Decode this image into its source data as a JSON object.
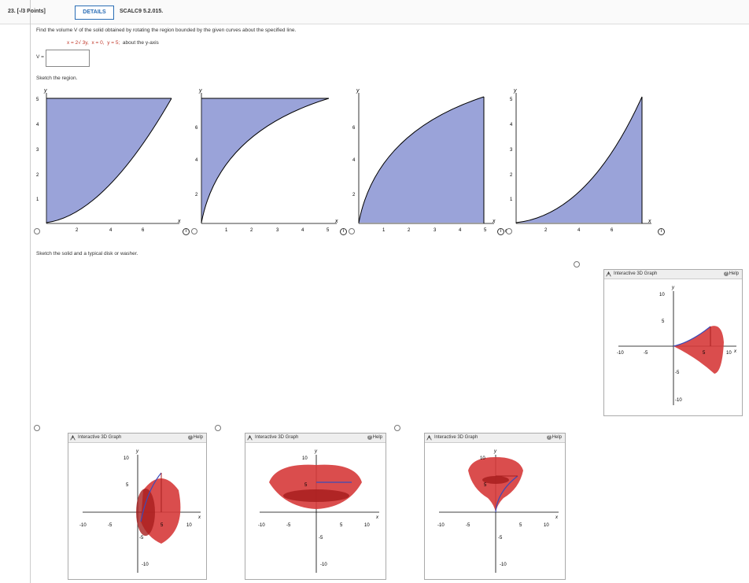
{
  "header": {
    "question_number": "23. [-/3 Points]",
    "details_label": "DETAILS",
    "problem_code": "SCALC9 5.2.015."
  },
  "prompt": "Find the volume V of the solid obtained by rotating the region bounded by the given curves about the specified line.",
  "equation": {
    "curve": "x = 2√ 3y,",
    "bound1": "x = 0,",
    "bound2": "y = 5;",
    "axis": "about the y-axis"
  },
  "answer": {
    "label": "V =",
    "value": ""
  },
  "sketch_region_label": "Sketch the region.",
  "sketch_solid_label": "Sketch the solid and a typical disk or washer.",
  "region_graphs": [
    {
      "ylabel": "y",
      "xlabel": "x",
      "yticks": [
        "1",
        "2",
        "3",
        "4",
        "5"
      ],
      "xticks": [
        "2",
        "4",
        "6"
      ],
      "origin": "O"
    },
    {
      "ylabel": "y",
      "xlabel": "x",
      "yticks": [
        "2",
        "4",
        "6"
      ],
      "xticks": [
        "1",
        "2",
        "3",
        "4",
        "5"
      ],
      "origin": "O"
    },
    {
      "ylabel": "y",
      "xlabel": "x",
      "yticks": [
        "2",
        "4",
        "6"
      ],
      "xticks": [
        "1",
        "2",
        "3",
        "4",
        "5"
      ],
      "origin": "O"
    },
    {
      "ylabel": "y",
      "xlabel": "x",
      "yticks": [
        "1",
        "2",
        "3",
        "4",
        "5"
      ],
      "xticks": [
        "2",
        "4",
        "6"
      ],
      "origin": "O"
    }
  ],
  "panels": [
    {
      "title": "Interactive 3D Graph",
      "help": "Help",
      "ytop": "10",
      "y5": "5",
      "yneg5": "-5",
      "ybot": "-10",
      "xneg10": "-10",
      "xneg5": "-5",
      "x5": "5",
      "x10": "10",
      "xlabel": "x",
      "ylabel": "y"
    },
    {
      "title": "Interactive 3D Graph",
      "help": "Help",
      "ytop": "10",
      "y5": "5",
      "yneg5": "-5",
      "ybot": "-10",
      "xneg10": "-10",
      "xneg5": "-5",
      "x5": "5",
      "x10": "10",
      "xlabel": "x",
      "ylabel": "y"
    },
    {
      "title": "Interactive 3D Graph",
      "help": "Help",
      "ytop": "10",
      "y5": "5",
      "yneg5": "-5",
      "ybot": "-10",
      "xneg10": "-10",
      "xneg5": "-5",
      "x5": "5",
      "x10": "10",
      "xlabel": "x",
      "ylabel": "y"
    },
    {
      "title": "Interactive 3D Graph",
      "help": "Help",
      "ytop": "10",
      "y5": "5",
      "yneg5": "-5",
      "ybot": "-10",
      "xneg10": "-10",
      "xneg5": "-5",
      "x5": "5",
      "x10": "10",
      "xlabel": "x",
      "ylabel": "y"
    }
  ],
  "colors": {
    "region_fill": "#9aa3d9",
    "solid_fill": "#d63a3a",
    "solid_dark": "#a81e1e",
    "link": "#2a6db5"
  }
}
